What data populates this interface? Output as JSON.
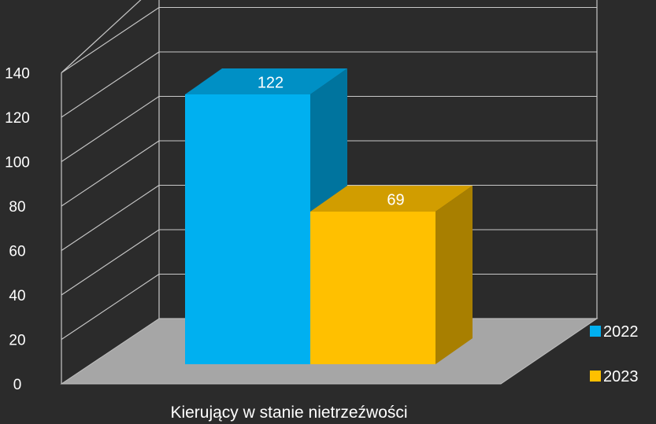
{
  "chart_data": {
    "type": "bar",
    "categories": [
      "Kierujący w stanie nietrzeźwości"
    ],
    "series": [
      {
        "name": "2022",
        "values": [
          122
        ],
        "color": "#00b0f0"
      },
      {
        "name": "2023",
        "values": [
          69
        ],
        "color": "#ffc000"
      }
    ],
    "yticks": [
      "0",
      "20",
      "40",
      "60",
      "80",
      "100",
      "120",
      "140"
    ],
    "ylim": [
      0,
      140
    ],
    "data_labels": [
      "122",
      "69"
    ],
    "grid": true,
    "legend_position": "right",
    "style": "3d-clustered-column",
    "background": "#2b2b2b",
    "wall_line_color": "#c8c8c8",
    "floor_color": "#a6a6a6"
  }
}
